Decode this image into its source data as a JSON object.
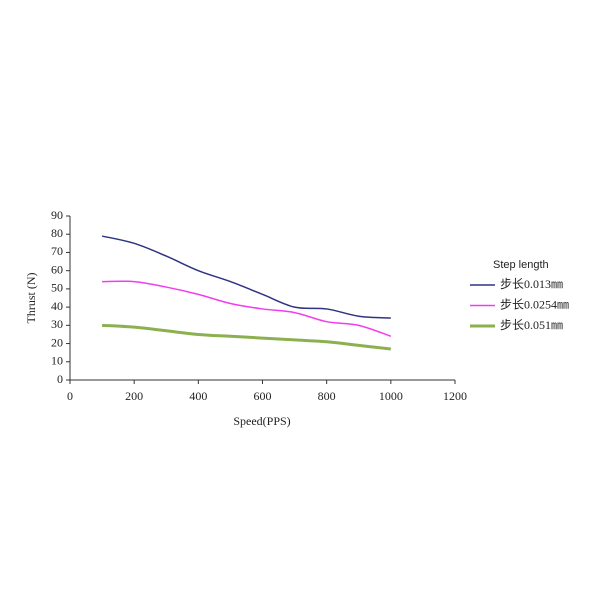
{
  "chart_data": {
    "type": "line",
    "x_label": "Speed(PPS)",
    "y_label": "Thrust (N)",
    "legend_title": "Step length",
    "legend": "right",
    "x": [
      100,
      200,
      300,
      400,
      500,
      600,
      700,
      800,
      900,
      1000
    ],
    "series": [
      {
        "name": "步长0.013㎜",
        "color": "#2e3383",
        "width": 1.5,
        "values": [
          79,
          75,
          68,
          60,
          54,
          47,
          40,
          39,
          35,
          34
        ]
      },
      {
        "name": "步长0.0254㎜",
        "color": "#f23cf0",
        "width": 1.5,
        "values": [
          54,
          54,
          51,
          47,
          42,
          39,
          37,
          32,
          30,
          24
        ]
      },
      {
        "name": "步长0.051㎜",
        "color": "#8cb050",
        "width": 3,
        "values": [
          30,
          29,
          27,
          25,
          24,
          23,
          22,
          21,
          19,
          17
        ]
      }
    ],
    "xlim": [
      0,
      1200
    ],
    "xticks": [
      0,
      200,
      400,
      600,
      800,
      1000,
      1200
    ],
    "ylim": [
      0,
      90
    ],
    "yticks": [
      0,
      10,
      20,
      30,
      40,
      50,
      60,
      70,
      80,
      90
    ]
  }
}
